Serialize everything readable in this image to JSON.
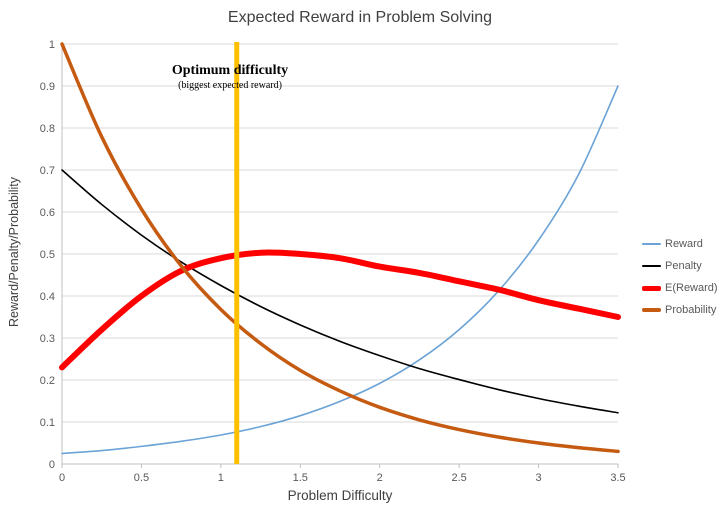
{
  "chart_data": {
    "type": "line",
    "title": "Expected Reward in Problem Solving",
    "xlabel": "Problem Difficulty",
    "ylabel": "Reward/Penalty/Probability",
    "xlim": [
      0,
      3.5
    ],
    "ylim": [
      0,
      1
    ],
    "xticks": [
      0,
      0.5,
      1,
      1.5,
      2,
      2.5,
      3,
      3.5
    ],
    "yticks": [
      0,
      0.1,
      0.2,
      0.3,
      0.4,
      0.5,
      0.6,
      0.7,
      0.8,
      0.9,
      1
    ],
    "grid": "horizontal",
    "legend_position": "right",
    "colors": {
      "grid": "#D9D9D9",
      "axis": "#BFBFBF",
      "tick_text": "#595959",
      "title_text": "#404040"
    },
    "x": [
      0,
      0.25,
      0.5,
      0.75,
      1,
      1.25,
      1.5,
      1.75,
      2,
      2.25,
      2.5,
      2.75,
      3,
      3.25,
      3.5
    ],
    "series": [
      {
        "name": "Reward",
        "color": "#6BA3D6",
        "width": 1.6,
        "values": [
          0.025,
          0.032,
          0.042,
          0.054,
          0.069,
          0.089,
          0.115,
          0.149,
          0.192,
          0.248,
          0.32,
          0.413,
          0.533,
          0.688,
          0.9
        ]
      },
      {
        "name": "Penalty",
        "color": "#000000",
        "width": 1.6,
        "values": [
          0.7,
          0.618,
          0.545,
          0.481,
          0.425,
          0.375,
          0.331,
          0.292,
          0.258,
          0.227,
          0.201,
          0.177,
          0.156,
          0.138,
          0.122
        ]
      },
      {
        "name": "E(Reward)",
        "color": "#FF0000",
        "width": 6,
        "values": [
          0.23,
          0.32,
          0.4,
          0.46,
          0.49,
          0.503,
          0.5,
          0.49,
          0.47,
          0.455,
          0.435,
          0.415,
          0.39,
          0.37,
          0.35
        ]
      },
      {
        "name": "Probability",
        "color": "#C55A11",
        "width": 3.5,
        "values": [
          1,
          0.779,
          0.607,
          0.472,
          0.368,
          0.287,
          0.223,
          0.174,
          0.135,
          0.105,
          0.082,
          0.064,
          0.05,
          0.039,
          0.03
        ]
      }
    ],
    "marker_line": {
      "x": 1.1,
      "color": "#FFC000",
      "width": 5
    }
  },
  "annotation": {
    "line1": "Optimum difficulty",
    "line2": "(biggest expected reward)"
  }
}
